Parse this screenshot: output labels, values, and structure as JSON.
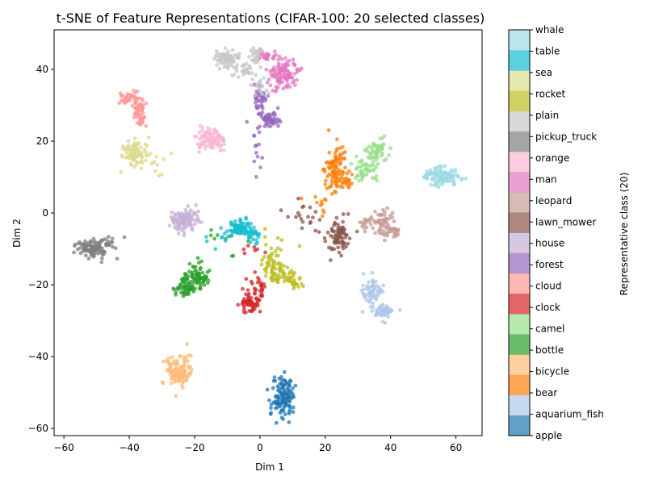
{
  "chart_data": {
    "type": "scatter",
    "title": "t-SNE of Feature Representations (CIFAR-100: 20 selected classes)",
    "xlabel": "Dim 1",
    "ylabel": "Dim 2",
    "xlim": [
      -63,
      68
    ],
    "ylim": [
      -62,
      51
    ],
    "xticks": [
      -60,
      -40,
      -20,
      0,
      20,
      40,
      60
    ],
    "yticks": [
      -60,
      -40,
      -20,
      0,
      20,
      40
    ],
    "grid": false,
    "colorbar": {
      "label": "Representative class (20)",
      "position": "right",
      "classes": [
        "apple",
        "aquarium_fish",
        "bear",
        "bicycle",
        "bottle",
        "camel",
        "clock",
        "cloud",
        "forest",
        "house",
        "lawn_mower",
        "leopard",
        "man",
        "orange",
        "pickup_truck",
        "plain",
        "rocket",
        "sea",
        "table",
        "whale"
      ],
      "colors": [
        "#1f77b4",
        "#aec7e8",
        "#ff7f0e",
        "#ffbb78",
        "#2ca02c",
        "#98df8a",
        "#d62728",
        "#ff9896",
        "#9467bd",
        "#c5b0d5",
        "#8c564b",
        "#c49c94",
        "#e377c2",
        "#f7b6d2",
        "#7f7f7f",
        "#c7c7c7",
        "#bcbd22",
        "#dbdb8d",
        "#17becf",
        "#9edae5"
      ]
    },
    "series": [
      {
        "name": "apple",
        "clusters": [
          {
            "cx": 7,
            "cy": -51,
            "sx": 1.8,
            "sy": 3.0,
            "n": 120
          }
        ]
      },
      {
        "name": "aquarium_fish",
        "clusters": [
          {
            "cx": 34,
            "cy": -22,
            "sx": 1.5,
            "sy": 1.8,
            "n": 60
          },
          {
            "cx": 38,
            "cy": -27.5,
            "sx": 1.8,
            "sy": 1.2,
            "n": 45
          }
        ]
      },
      {
        "name": "bear",
        "clusters": [
          {
            "cx": 23,
            "cy": 13,
            "sx": 1.5,
            "sy": 3.0,
            "n": 90
          },
          {
            "cx": 27,
            "cy": 9,
            "sx": 1.2,
            "sy": 1.2,
            "n": 25
          },
          {
            "cx": 18,
            "cy": 2,
            "sx": 2.5,
            "sy": 3.0,
            "n": 12
          }
        ]
      },
      {
        "name": "bicycle",
        "clusters": [
          {
            "cx": -25,
            "cy": -44,
            "sx": 2.0,
            "sy": 2.2,
            "n": 110
          }
        ]
      },
      {
        "name": "bottle",
        "clusters": [
          {
            "cx": -23,
            "cy": -21,
            "sx": 1.6,
            "sy": 1.5,
            "n": 60
          },
          {
            "cx": -19,
            "cy": -18,
            "sx": 1.8,
            "sy": 1.8,
            "n": 70
          },
          {
            "cx": -13,
            "cy": -8,
            "sx": 3.0,
            "sy": 3.0,
            "n": 10
          }
        ]
      },
      {
        "name": "camel",
        "clusters": [
          {
            "cx": 36,
            "cy": 17,
            "sx": 2.0,
            "sy": 2.0,
            "n": 50
          },
          {
            "cx": 32,
            "cy": 12,
            "sx": 2.0,
            "sy": 1.5,
            "n": 45
          }
        ]
      },
      {
        "name": "clock",
        "clusters": [
          {
            "cx": -3,
            "cy": -25,
            "sx": 1.4,
            "sy": 1.4,
            "n": 60
          },
          {
            "cx": 0,
            "cy": -21,
            "sx": 1.0,
            "sy": 1.8,
            "n": 25
          },
          {
            "cx": -2,
            "cy": -12,
            "sx": 2.5,
            "sy": 2.5,
            "n": 8
          }
        ]
      },
      {
        "name": "cloud",
        "clusters": [
          {
            "cx": -40,
            "cy": 32,
            "sx": 1.6,
            "sy": 0.9,
            "n": 40
          },
          {
            "cx": -37,
            "cy": 29,
            "sx": 1.3,
            "sy": 1.3,
            "n": 30
          },
          {
            "cx": -36,
            "cy": 26,
            "sx": 1.0,
            "sy": 1.2,
            "n": 20
          }
        ]
      },
      {
        "name": "forest",
        "clusters": [
          {
            "cx": 0,
            "cy": 32,
            "sx": 1.0,
            "sy": 2.5,
            "n": 35
          },
          {
            "cx": 3,
            "cy": 26,
            "sx": 1.8,
            "sy": 1.3,
            "n": 55
          },
          {
            "cx": -1,
            "cy": 18,
            "sx": 1.5,
            "sy": 3.0,
            "n": 15
          }
        ]
      },
      {
        "name": "house",
        "clusters": [
          {
            "cx": -23,
            "cy": -2,
            "sx": 2.2,
            "sy": 1.6,
            "n": 100
          }
        ]
      },
      {
        "name": "lawn_mower",
        "clusters": [
          {
            "cx": 24,
            "cy": -7,
            "sx": 1.5,
            "sy": 2.3,
            "n": 80
          },
          {
            "cx": 14,
            "cy": -1,
            "sx": 3.0,
            "sy": 2.0,
            "n": 20
          }
        ]
      },
      {
        "name": "leopard",
        "clusters": [
          {
            "cx": 38,
            "cy": -2,
            "sx": 1.5,
            "sy": 2.0,
            "n": 50
          },
          {
            "cx": 41,
            "cy": -5,
            "sx": 1.0,
            "sy": 1.0,
            "n": 20
          },
          {
            "cx": 33,
            "cy": -3,
            "sx": 1.5,
            "sy": 1.2,
            "n": 20
          }
        ]
      },
      {
        "name": "man",
        "clusters": [
          {
            "cx": 7,
            "cy": 39,
            "sx": 2.5,
            "sy": 2.0,
            "n": 110
          },
          {
            "cx": 1,
            "cy": 44,
            "sx": 1.5,
            "sy": 0.7,
            "n": 25
          }
        ]
      },
      {
        "name": "orange",
        "clusters": [
          {
            "cx": -15,
            "cy": 20,
            "sx": 2.2,
            "sy": 1.8,
            "n": 100
          }
        ]
      },
      {
        "name": "pickup_truck",
        "clusters": [
          {
            "cx": -51,
            "cy": -10,
            "sx": 2.3,
            "sy": 1.2,
            "n": 100
          },
          {
            "cx": -46,
            "cy": -8,
            "sx": 1.2,
            "sy": 1.0,
            "n": 15
          }
        ]
      },
      {
        "name": "plain",
        "clusters": [
          {
            "cx": -10,
            "cy": 43,
            "sx": 2.0,
            "sy": 1.2,
            "n": 70
          },
          {
            "cx": -1,
            "cy": 43,
            "sx": 1.0,
            "sy": 1.5,
            "n": 25
          },
          {
            "cx": -5,
            "cy": 40,
            "sx": 2.0,
            "sy": 1.0,
            "n": 25
          },
          {
            "cx": 0,
            "cy": 36,
            "sx": 1.5,
            "sy": 2.0,
            "n": 20
          }
        ]
      },
      {
        "name": "rocket",
        "clusters": [
          {
            "cx": 5,
            "cy": -16,
            "sx": 2.0,
            "sy": 1.8,
            "n": 70
          },
          {
            "cx": 10,
            "cy": -19,
            "sx": 1.2,
            "sy": 1.2,
            "n": 30
          },
          {
            "cx": 4,
            "cy": -9,
            "sx": 3.0,
            "sy": 2.5,
            "n": 12
          }
        ]
      },
      {
        "name": "sea",
        "clusters": [
          {
            "cx": -38,
            "cy": 17,
            "sx": 2.0,
            "sy": 2.0,
            "n": 90
          },
          {
            "cx": -31,
            "cy": 13,
            "sx": 2.0,
            "sy": 2.5,
            "n": 10
          }
        ]
      },
      {
        "name": "table",
        "clusters": [
          {
            "cx": -6,
            "cy": -4,
            "sx": 1.3,
            "sy": 1.0,
            "n": 80
          },
          {
            "cx": -2,
            "cy": -6,
            "sx": 1.0,
            "sy": 1.0,
            "n": 25
          },
          {
            "cx": -11,
            "cy": -8,
            "sx": 2.5,
            "sy": 1.5,
            "n": 12
          }
        ]
      },
      {
        "name": "whale",
        "clusters": [
          {
            "cx": 56,
            "cy": 10,
            "sx": 2.5,
            "sy": 1.2,
            "n": 110
          },
          {
            "cx": 51,
            "cy": 11,
            "sx": 0.8,
            "sy": 0.8,
            "n": 10
          }
        ]
      }
    ]
  }
}
